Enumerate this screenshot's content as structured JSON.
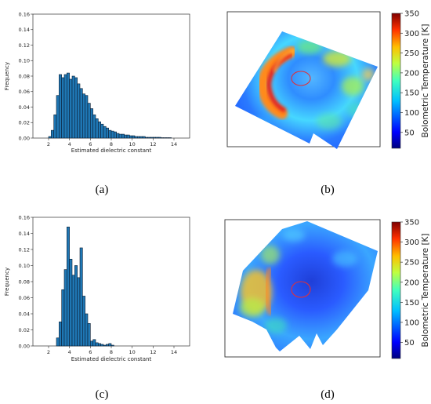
{
  "panels": [
    {
      "id": "a",
      "label": "(a)"
    },
    {
      "id": "b",
      "label": "(b)"
    },
    {
      "id": "c",
      "label": "(c)"
    },
    {
      "id": "d",
      "label": "(d)"
    }
  ],
  "colors": {
    "bar_fill": "#1f77b4",
    "bar_edge": "#0b1e33",
    "map_background": "#1e5cff",
    "crater_marker": "#e0303a",
    "colormap": [
      "#00007f",
      "#0000ff",
      "#007fff",
      "#00ffff",
      "#7fff7f",
      "#ffff00",
      "#ff7f00",
      "#ff0000",
      "#7f0000"
    ]
  },
  "chart_data": [
    {
      "panel": "a",
      "type": "bar",
      "xlabel": "Estimated dielectric constant",
      "ylabel": "Frequency",
      "xlim": [
        0.5,
        15.5
      ],
      "ylim": [
        0,
        0.16
      ],
      "xticks": [
        "2",
        "4",
        "6",
        "8",
        "10",
        "12",
        "14"
      ],
      "yticks": [
        "0.00",
        "0.02",
        "0.04",
        "0.06",
        "0.08",
        "0.10",
        "0.12",
        "0.14",
        "0.16"
      ],
      "bin_width": 0.25,
      "x": [
        2.0,
        2.25,
        2.5,
        2.75,
        3.0,
        3.25,
        3.5,
        3.75,
        4.0,
        4.25,
        4.5,
        4.75,
        5.0,
        5.25,
        5.5,
        5.75,
        6.0,
        6.25,
        6.5,
        6.75,
        7.0,
        7.25,
        7.5,
        7.75,
        8.0,
        8.25,
        8.5,
        8.75,
        9.0,
        9.25,
        9.5,
        9.75,
        10.0,
        10.25,
        10.5,
        10.75,
        11.0,
        11.25,
        11.5,
        11.75,
        12.0,
        12.25,
        12.5,
        12.75,
        13.0,
        13.25,
        13.5
      ],
      "values": [
        0.002,
        0.01,
        0.03,
        0.055,
        0.082,
        0.078,
        0.082,
        0.084,
        0.076,
        0.08,
        0.078,
        0.07,
        0.064,
        0.057,
        0.055,
        0.045,
        0.038,
        0.03,
        0.025,
        0.021,
        0.018,
        0.015,
        0.013,
        0.01,
        0.009,
        0.008,
        0.006,
        0.005,
        0.005,
        0.004,
        0.004,
        0.003,
        0.003,
        0.002,
        0.002,
        0.002,
        0.002,
        0.001,
        0.001,
        0.001,
        0.001,
        0.001,
        0.001,
        0.0005,
        0.0005,
        0.0005,
        0.0005
      ]
    },
    {
      "panel": "c",
      "type": "bar",
      "xlabel": "Estimated dielectric constant",
      "ylabel": "Frequency",
      "xlim": [
        0.5,
        15.5
      ],
      "ylim": [
        0,
        0.16
      ],
      "xticks": [
        "2",
        "4",
        "6",
        "8",
        "10",
        "12",
        "14"
      ],
      "yticks": [
        "0.00",
        "0.02",
        "0.04",
        "0.06",
        "0.08",
        "0.10",
        "0.12",
        "0.14",
        "0.16"
      ],
      "bin_width": 0.25,
      "x": [
        2.75,
        3.0,
        3.25,
        3.5,
        3.75,
        4.0,
        4.25,
        4.5,
        4.75,
        5.0,
        5.25,
        5.5,
        5.75,
        6.0,
        6.25,
        6.5,
        6.75,
        7.0,
        7.25,
        7.5,
        7.75,
        8.0
      ],
      "values": [
        0.01,
        0.03,
        0.07,
        0.095,
        0.148,
        0.108,
        0.088,
        0.1,
        0.085,
        0.122,
        0.062,
        0.04,
        0.028,
        0.006,
        0.008,
        0.004,
        0.003,
        0.002,
        0.001,
        0.002,
        0.003,
        0.001
      ]
    },
    {
      "panel": "b",
      "type": "heatmap",
      "colorbar_label": "Bolometric Temperature [K]",
      "colorbar_range": [
        10,
        350
      ],
      "colorbar_ticks": [
        "50",
        "100",
        "150",
        "200",
        "250",
        "300",
        "350"
      ]
    },
    {
      "panel": "d",
      "type": "heatmap",
      "colorbar_label": "Bolometric Temperature [K]",
      "colorbar_range": [
        10,
        350
      ],
      "colorbar_ticks": [
        "50",
        "100",
        "150",
        "200",
        "250",
        "300",
        "350"
      ]
    }
  ]
}
